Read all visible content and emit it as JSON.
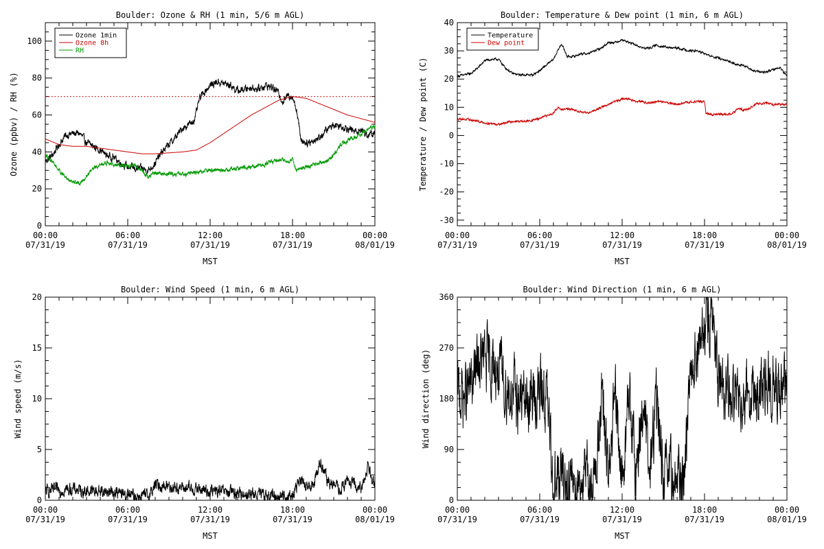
{
  "chart_data": [
    {
      "type": "line",
      "title": "Boulder: Ozone & RH (1 min, 5/6 m AGL)",
      "ylabel": "Ozone (ppbv) / RH (%)",
      "xlabel": "MST",
      "xlim_hours": [
        0,
        24
      ],
      "ylim": [
        0,
        110
      ],
      "yticks": [
        0,
        20,
        40,
        60,
        80,
        100
      ],
      "xtick_labels": [
        {
          "time": "00:00",
          "date": "07/31/19"
        },
        {
          "time": "06:00",
          "date": "07/31/19"
        },
        {
          "time": "12:00",
          "date": "07/31/19"
        },
        {
          "time": "18:00",
          "date": "07/31/19"
        },
        {
          "time": "00:00",
          "date": "08/01/19"
        }
      ],
      "reference_line": {
        "y": 70,
        "style": "dotted",
        "color": "#cc0000"
      },
      "legend": {
        "position": "top-left"
      },
      "series": [
        {
          "name": "Ozone 1min",
          "color": "#000000",
          "noise": 1.6,
          "x": [
            0,
            0.5,
            1,
            1.5,
            2,
            2.5,
            3,
            3.5,
            4,
            4.5,
            5,
            5.5,
            6,
            6.5,
            7,
            7.5,
            8,
            8.5,
            9,
            9.5,
            10,
            10.5,
            10.9,
            11.2,
            11.5,
            12,
            12.5,
            13,
            13.5,
            14,
            14.5,
            15,
            15.5,
            16,
            16.5,
            17,
            17.3,
            17.7,
            18,
            18.3,
            18.6,
            19,
            19.5,
            20,
            20.5,
            21,
            21.5,
            22,
            22.5,
            23,
            23.5,
            24
          ],
          "y": [
            35,
            38,
            44,
            49,
            50,
            50,
            45,
            43,
            41,
            38,
            37,
            34,
            32,
            31,
            31,
            30,
            34,
            40,
            44,
            48,
            53,
            55,
            58,
            68,
            72,
            76,
            78,
            77,
            76,
            73,
            74,
            75,
            74,
            76,
            75,
            72,
            67,
            71,
            70,
            63,
            47,
            45,
            46,
            48,
            52,
            55,
            54,
            53,
            51,
            52,
            49,
            50
          ]
        },
        {
          "name": "Ozone 8h",
          "color": "#cc0000",
          "noise": 0,
          "x": [
            0,
            1,
            2,
            3,
            4,
            5,
            6,
            7,
            8,
            9,
            10,
            11,
            12,
            13,
            14,
            15,
            16,
            17,
            18,
            19,
            20,
            21,
            22,
            23,
            24
          ],
          "y": [
            47,
            44,
            43,
            43,
            42,
            41,
            40,
            39,
            39,
            39.5,
            40,
            41,
            45,
            50,
            55,
            60,
            64,
            68,
            70,
            69,
            66,
            63,
            60,
            58,
            56
          ]
        },
        {
          "name": "RH",
          "color": "#009900",
          "noise": 0.9,
          "x": [
            0,
            0.5,
            1,
            1.5,
            2,
            2.5,
            3,
            3.5,
            4,
            4.5,
            5,
            5.5,
            6,
            6.5,
            7,
            7.5,
            8,
            8.5,
            9,
            10,
            11,
            12,
            13,
            14,
            15,
            16,
            16.5,
            17,
            17.5,
            18,
            18.3,
            18.7,
            19,
            19.5,
            20,
            20.5,
            21,
            21.5,
            22,
            22.5,
            23,
            23.5,
            24
          ],
          "y": [
            38,
            35,
            30,
            26,
            24,
            23,
            27,
            31,
            33,
            34,
            33,
            33,
            32,
            33,
            30,
            26,
            29,
            28,
            28,
            28,
            29,
            30,
            30,
            31,
            32,
            33,
            35,
            36,
            35,
            36,
            30,
            31,
            32,
            33,
            34,
            35,
            38,
            44,
            46,
            48,
            50,
            52,
            54
          ]
        }
      ]
    },
    {
      "type": "line",
      "title": "Boulder: Temperature & Dew point (1 min, 6 m AGL)",
      "ylabel": "Temperature / Dew point (C)",
      "xlabel": "MST",
      "xlim_hours": [
        0,
        24
      ],
      "ylim": [
        -32,
        40
      ],
      "yticks": [
        -30,
        -20,
        -10,
        0,
        10,
        20,
        30,
        40
      ],
      "xtick_labels": [
        {
          "time": "00:00",
          "date": "07/31/19"
        },
        {
          "time": "06:00",
          "date": "07/31/19"
        },
        {
          "time": "12:00",
          "date": "07/31/19"
        },
        {
          "time": "18:00",
          "date": "07/31/19"
        },
        {
          "time": "00:00",
          "date": "08/01/19"
        }
      ],
      "legend": {
        "position": "top-left"
      },
      "series": [
        {
          "name": "Temperature",
          "color": "#000000",
          "noise": 0.3,
          "x": [
            0,
            0.5,
            1,
            1.5,
            2,
            2.5,
            3,
            3.5,
            4,
            4.5,
            5,
            5.5,
            6,
            6.5,
            7,
            7.3,
            7.6,
            8,
            8.5,
            9,
            9.5,
            10,
            10.5,
            11,
            11.5,
            12,
            12.5,
            13,
            13.5,
            14,
            14.5,
            15,
            15.5,
            16,
            16.5,
            17,
            17.5,
            18,
            18.5,
            19,
            19.5,
            20,
            20.5,
            21,
            21.5,
            22,
            22.5,
            23,
            23.5,
            24
          ],
          "y": [
            21,
            21.5,
            22,
            24,
            26.5,
            27,
            27,
            24,
            22,
            21.5,
            21.5,
            21.5,
            23,
            25,
            27,
            30,
            32.5,
            28,
            28,
            29,
            29,
            30,
            31,
            33,
            33,
            34,
            33,
            32,
            31,
            31,
            32,
            31.5,
            31,
            31,
            30.5,
            30,
            30,
            29,
            28,
            27.5,
            26.5,
            26,
            25,
            24.5,
            23,
            22.5,
            22.5,
            23.5,
            24,
            21
          ]
        },
        {
          "name": "Dew point",
          "color": "#cc0000",
          "noise": 0.3,
          "x": [
            0,
            1,
            2,
            3,
            4,
            5,
            6,
            6.5,
            7,
            7.3,
            7.6,
            8,
            8.5,
            9,
            9.5,
            10,
            10.5,
            11,
            11.5,
            12,
            12.5,
            13,
            13.5,
            14,
            14.5,
            15,
            15.5,
            16,
            16.5,
            17,
            17.5,
            18,
            18.1,
            18.5,
            19,
            19.5,
            20,
            20.3,
            20.5,
            21,
            21.5,
            22,
            22.5,
            23,
            23.5,
            24
          ],
          "y": [
            6,
            5.5,
            4.5,
            4,
            5,
            5,
            6,
            7,
            8,
            10,
            9,
            9.5,
            9,
            8.5,
            8,
            9,
            10,
            11,
            12,
            13,
            13,
            12,
            12,
            11.5,
            12,
            12,
            11.5,
            11,
            11.5,
            12,
            12,
            12,
            8,
            7.5,
            7.5,
            7.5,
            7.5,
            9,
            9.5,
            9,
            10.5,
            11.5,
            11.5,
            11,
            11,
            11
          ]
        }
      ]
    },
    {
      "type": "line",
      "title": "Boulder: Wind Speed (1 min, 6 m AGL)",
      "ylabel": "Wind speed (m/s)",
      "xlabel": "MST",
      "xlim_hours": [
        0,
        24
      ],
      "ylim": [
        0,
        20
      ],
      "yticks": [
        0,
        5,
        10,
        15,
        20
      ],
      "xtick_labels": [
        {
          "time": "00:00",
          "date": "07/31/19"
        },
        {
          "time": "06:00",
          "date": "07/31/19"
        },
        {
          "time": "12:00",
          "date": "07/31/19"
        },
        {
          "time": "18:00",
          "date": "07/31/19"
        },
        {
          "time": "00:00",
          "date": "08/01/19"
        }
      ],
      "series": [
        {
          "name": "",
          "color": "#000000",
          "noise": 0.5,
          "x": [
            0,
            1,
            2,
            3,
            4,
            5,
            6,
            7,
            7.5,
            8,
            9,
            10,
            11,
            12,
            13,
            14,
            15,
            16,
            17,
            18,
            18.5,
            19,
            19.5,
            20,
            20.5,
            21,
            21.5,
            22,
            22.5,
            23,
            23.5,
            24
          ],
          "y": [
            0.9,
            1.0,
            1.1,
            0.9,
            0.9,
            0.8,
            0.5,
            0.4,
            0.4,
            1.5,
            1.4,
            1.2,
            1.1,
            0.9,
            0.8,
            0.7,
            0.6,
            0.5,
            0.4,
            0.4,
            2.0,
            1.2,
            1.5,
            3.8,
            2.0,
            1.5,
            1.0,
            2.0,
            1.5,
            1.0,
            3.5,
            1.5
          ]
        }
      ]
    },
    {
      "type": "line",
      "title": "Boulder: Wind Direction (1 min, 6 m AGL)",
      "ylabel": "Wind direction (deg)",
      "xlabel": "MST",
      "xlim_hours": [
        0,
        24
      ],
      "ylim": [
        0,
        360
      ],
      "yticks": [
        0,
        90,
        180,
        270,
        360
      ],
      "xtick_labels": [
        {
          "time": "00:00",
          "date": "07/31/19"
        },
        {
          "time": "06:00",
          "date": "07/31/19"
        },
        {
          "time": "12:00",
          "date": "07/31/19"
        },
        {
          "time": "18:00",
          "date": "07/31/19"
        },
        {
          "time": "00:00",
          "date": "08/01/19"
        }
      ],
      "series": [
        {
          "name": "",
          "color": "#000000",
          "noise": 45,
          "x": [
            0,
            0.5,
            1,
            1.5,
            2,
            2.5,
            3,
            3.5,
            4,
            4.5,
            5,
            5.5,
            6,
            6.5,
            7,
            7.5,
            8,
            8.5,
            9,
            9.5,
            10,
            10.5,
            11,
            11.5,
            12,
            12.5,
            13,
            13.5,
            14,
            14.5,
            15,
            15.5,
            16,
            16.5,
            17,
            17.5,
            18,
            18.5,
            19,
            19.5,
            20,
            20.5,
            21,
            21.5,
            22,
            22.5,
            23,
            23.5,
            24
          ],
          "y": [
            190,
            185,
            200,
            240,
            250,
            240,
            230,
            200,
            190,
            180,
            175,
            180,
            190,
            185,
            30,
            40,
            30,
            35,
            40,
            35,
            30,
            180,
            40,
            180,
            30,
            190,
            40,
            180,
            40,
            180,
            35,
            40,
            35,
            40,
            250,
            260,
            300,
            340,
            200,
            190,
            180,
            190,
            200,
            190,
            180,
            200,
            210,
            180,
            190
          ]
        }
      ]
    }
  ]
}
